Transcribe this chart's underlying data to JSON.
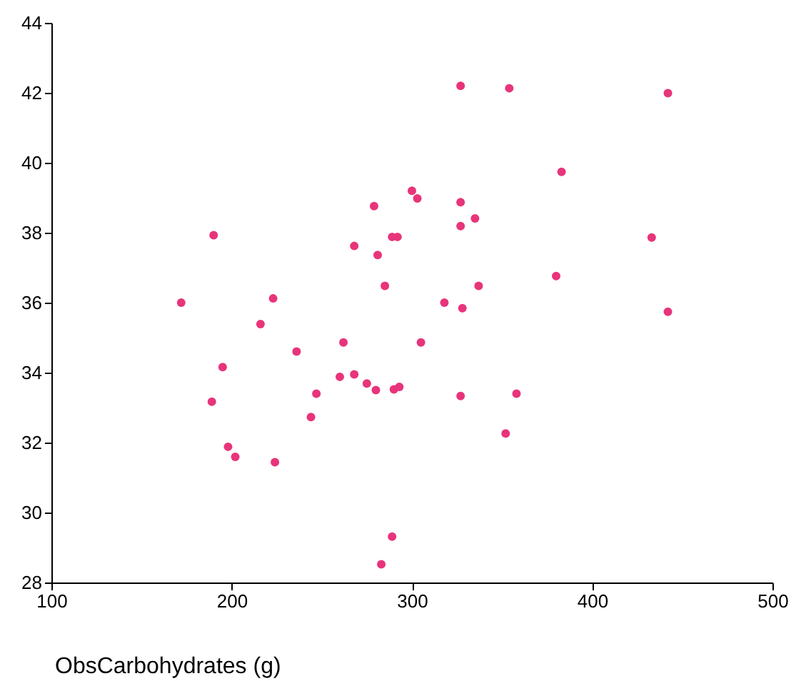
{
  "chart_data": {
    "type": "scatter",
    "xlabel": "ObsCarbohydrates (g)",
    "xlim": [
      100,
      500
    ],
    "xticks": [
      100,
      200,
      300,
      400,
      500
    ],
    "ylim": [
      28,
      44
    ],
    "yticks": [
      28,
      30,
      32,
      34,
      36,
      38,
      40,
      42,
      44
    ],
    "grid": false,
    "marker": "circle",
    "series": [
      {
        "color": "#e8347a",
        "x": [
          172,
          190,
          223,
          216,
          236,
          195,
          189,
          198,
          202,
          224,
          279,
          300,
          303,
          327,
          335,
          327,
          289,
          292,
          268,
          281,
          285,
          337,
          318,
          328,
          262,
          305,
          260,
          268,
          275,
          280,
          290,
          293,
          247,
          327,
          358,
          244,
          352,
          289,
          283,
          327,
          354,
          442,
          383,
          433,
          380,
          442
        ],
        "values": [
          36.0,
          37.93,
          36.12,
          35.39,
          34.6,
          34.16,
          33.17,
          31.88,
          31.59,
          31.44,
          38.76,
          39.2,
          38.98,
          38.87,
          38.41,
          38.19,
          37.88,
          37.88,
          37.62,
          37.36,
          36.48,
          36.48,
          36.0,
          35.84,
          34.86,
          34.86,
          33.88,
          33.95,
          33.69,
          33.5,
          33.52,
          33.59,
          33.4,
          33.33,
          33.4,
          32.73,
          32.26,
          29.31,
          28.52,
          42.2,
          42.13,
          41.99,
          39.74,
          37.86,
          36.76,
          35.74
        ]
      }
    ]
  }
}
